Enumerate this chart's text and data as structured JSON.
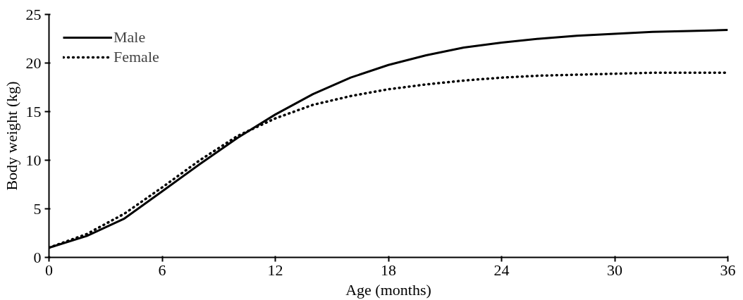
{
  "chart_data": {
    "type": "line",
    "xlabel": "Age (months)",
    "ylabel": "Body weight (kg)",
    "x": [
      0,
      2,
      4,
      6,
      8,
      10,
      12,
      14,
      16,
      18,
      20,
      22,
      24,
      26,
      28,
      30,
      32,
      34,
      36
    ],
    "series": [
      {
        "name": "Male",
        "color": "#000000",
        "line_style": "solid",
        "values": [
          1.0,
          2.2,
          4.0,
          6.8,
          9.6,
          12.3,
          14.7,
          16.8,
          18.5,
          19.8,
          20.8,
          21.6,
          22.1,
          22.5,
          22.8,
          23.0,
          23.2,
          23.3,
          23.4
        ]
      },
      {
        "name": "Female",
        "color": "#000000",
        "line_style": "dotted",
        "values": [
          1.0,
          2.4,
          4.5,
          7.2,
          10.0,
          12.5,
          14.3,
          15.7,
          16.6,
          17.3,
          17.8,
          18.2,
          18.5,
          18.7,
          18.8,
          18.9,
          19.0,
          19.0,
          19.0
        ]
      }
    ],
    "xlim": [
      0,
      36
    ],
    "xticks": [
      0,
      6,
      12,
      18,
      24,
      30,
      36
    ],
    "ylim": [
      0,
      25
    ],
    "yticks": [
      0,
      5,
      10,
      15,
      20,
      25
    ],
    "grid": false,
    "legend": "top left",
    "marker": "none"
  }
}
